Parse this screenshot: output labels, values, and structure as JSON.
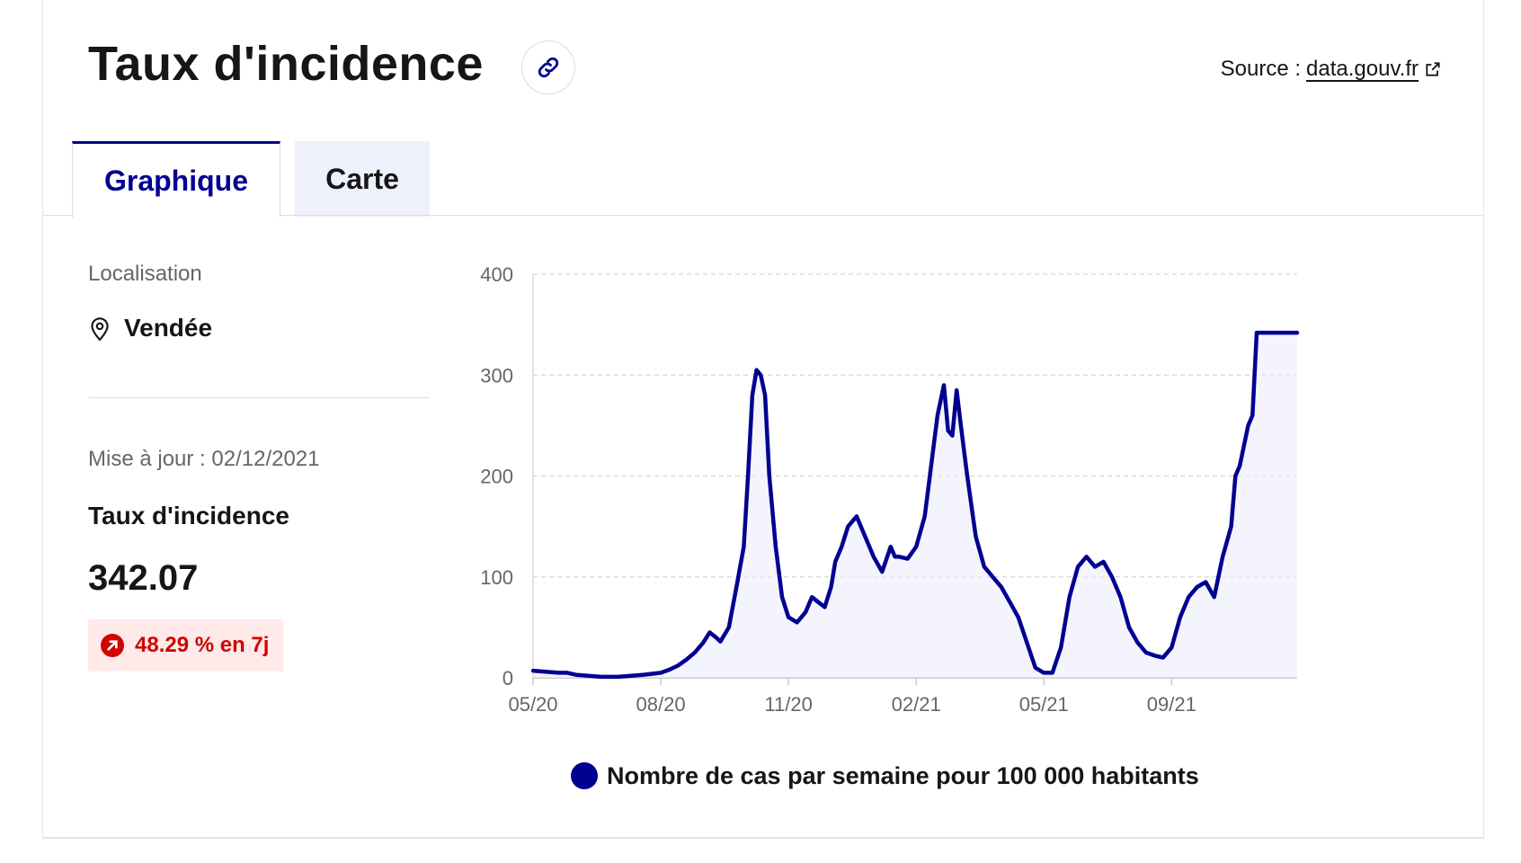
{
  "header": {
    "title": "Taux d'incidence",
    "source_label": "Source :",
    "source_link": "data.gouv.fr"
  },
  "tabs": [
    {
      "label": "Graphique",
      "active": true
    },
    {
      "label": "Carte",
      "active": false
    }
  ],
  "sidebar": {
    "location_label": "Localisation",
    "location_value": "Vendée",
    "update_text": "Mise à jour : 02/12/2021",
    "metric_label": "Taux d'incidence",
    "metric_value": "342.07",
    "change_text": "48.29 % en 7j"
  },
  "colors": {
    "accent": "#000091",
    "negative": "#ce0500",
    "negative_bg": "#ffe9e9"
  },
  "icons": {
    "link": "link-icon",
    "external": "external-link-icon",
    "location": "map-pin-icon",
    "trend": "arrow-up-right-icon"
  },
  "chart_data": {
    "type": "area",
    "title": "",
    "xlabel": "",
    "ylabel": "",
    "ylim": [
      0,
      400
    ],
    "yticks": [
      0,
      100,
      200,
      300,
      400
    ],
    "xticks": [
      "05/20",
      "08/20",
      "11/20",
      "02/21",
      "05/21",
      "09/21"
    ],
    "xtick_positions": [
      0,
      3,
      6,
      9,
      12,
      15
    ],
    "xlim": [
      0,
      17.95
    ],
    "grid": "horizontal-dashed",
    "legend_position": "bottom",
    "series": [
      {
        "name": "Nombre de cas par semaine pour 100 000 habitants",
        "x": [
          0,
          0.3,
          0.6,
          0.8,
          1.0,
          1.3,
          1.6,
          2.0,
          2.3,
          2.6,
          2.8,
          3.0,
          3.2,
          3.4,
          3.6,
          3.8,
          4.0,
          4.15,
          4.3,
          4.4,
          4.6,
          4.8,
          4.95,
          5.05,
          5.15,
          5.25,
          5.35,
          5.45,
          5.55,
          5.7,
          5.85,
          6.0,
          6.2,
          6.4,
          6.55,
          6.7,
          6.85,
          7.0,
          7.1,
          7.25,
          7.4,
          7.6,
          7.8,
          8.0,
          8.2,
          8.4,
          8.5,
          8.6,
          8.8,
          9.0,
          9.2,
          9.35,
          9.5,
          9.65,
          9.75,
          9.85,
          9.95,
          10.05,
          10.2,
          10.4,
          10.6,
          10.8,
          11.0,
          11.2,
          11.4,
          11.6,
          11.8,
          12.0,
          12.2,
          12.4,
          12.6,
          12.8,
          13.0,
          13.2,
          13.4,
          13.6,
          13.8,
          14.0,
          14.2,
          14.4,
          14.6,
          14.8,
          15.0,
          15.2,
          15.4,
          15.6,
          15.8,
          16.0,
          16.2,
          16.4,
          16.5,
          16.6,
          16.7,
          16.8,
          16.9,
          17.0,
          17.15,
          17.3,
          17.5,
          17.65,
          17.8,
          17.95
        ],
        "values": [
          7,
          6,
          5,
          5,
          3,
          2,
          1,
          1,
          2,
          3,
          4,
          5,
          8,
          12,
          18,
          25,
          35,
          45,
          40,
          36,
          50,
          95,
          130,
          200,
          280,
          305,
          300,
          280,
          200,
          130,
          80,
          60,
          55,
          65,
          80,
          75,
          70,
          90,
          115,
          130,
          150,
          160,
          140,
          120,
          105,
          130,
          120,
          120,
          118,
          130,
          160,
          210,
          260,
          290,
          245,
          240,
          285,
          250,
          200,
          140,
          110,
          100,
          90,
          75,
          60,
          35,
          10,
          5,
          5,
          30,
          80,
          110,
          120,
          110,
          115,
          100,
          80,
          50,
          35,
          25,
          22,
          20,
          30,
          60,
          80,
          90,
          95,
          80,
          120,
          150,
          200,
          210,
          230,
          250,
          260,
          342,
          342,
          342,
          342,
          342,
          342,
          342
        ]
      }
    ]
  }
}
